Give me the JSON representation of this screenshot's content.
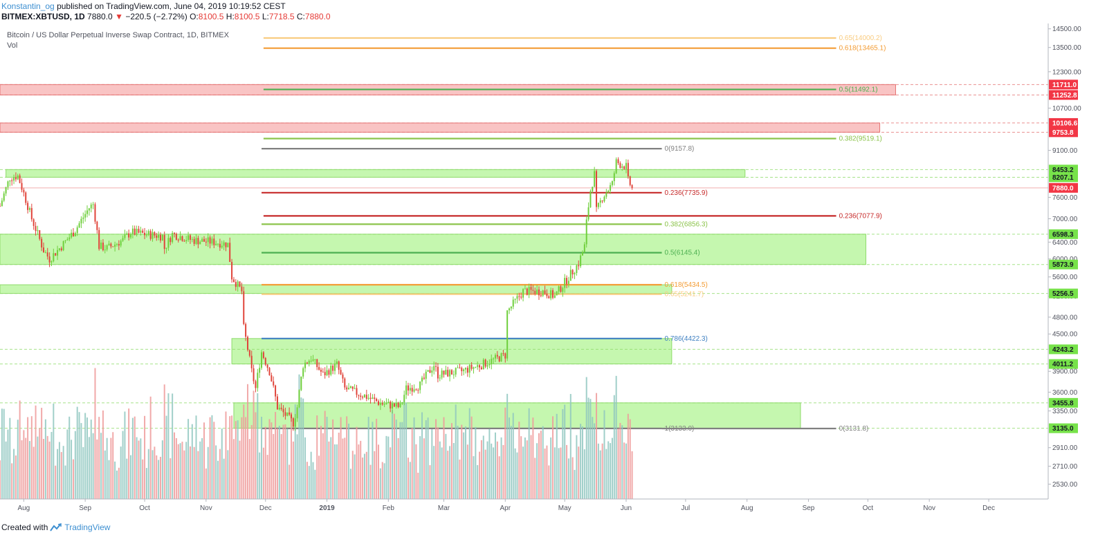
{
  "header": {
    "author": "Konstantin_og",
    "published_text": "published on TradingView.com, June 04, 2019 10:19:52 CEST"
  },
  "quote": {
    "symbol": "BITMEX:XBTUSD, 1D",
    "last": "7880.0",
    "change_arrow": "▼",
    "change": "−220.5 (−2.72%)",
    "o_label": "O:",
    "o_value": "8100.5",
    "h_label": "H:",
    "h_value": "8100.5",
    "l_label": "L:",
    "l_value": "7718.5",
    "c_label": "C:",
    "c_value": "7880.0"
  },
  "footer": {
    "created_with": "Created with",
    "brand": "TradingView"
  },
  "colors": {
    "up": "#6fcf3c",
    "down": "#e0443a",
    "vol_up": "#8fc7c0",
    "vol_down": "#ef9a9a",
    "green_zone": "#b7f59b",
    "red_zone": "#f7b5b5"
  },
  "chart_data": {
    "type": "candlestick",
    "title": "Bitcoin / US Dollar Perpetual Inverse Swap Contract, 1D, BITMEX",
    "volume_label": "Vol",
    "x_range": [
      "2018-07-20",
      "2019-12-31"
    ],
    "y_range": [
      2390,
      14800
    ],
    "x_ticks": [
      {
        "label": "Aug",
        "date": "2018-08-01"
      },
      {
        "label": "Sep",
        "date": "2018-09-01"
      },
      {
        "label": "Oct",
        "date": "2018-10-01"
      },
      {
        "label": "Nov",
        "date": "2018-11-01"
      },
      {
        "label": "Dec",
        "date": "2018-12-01"
      },
      {
        "label": "2019",
        "date": "2019-01-01"
      },
      {
        "label": "Feb",
        "date": "2019-02-01"
      },
      {
        "label": "Mar",
        "date": "2019-03-01"
      },
      {
        "label": "Apr",
        "date": "2019-04-01"
      },
      {
        "label": "May",
        "date": "2019-05-01"
      },
      {
        "label": "Jun",
        "date": "2019-06-01"
      },
      {
        "label": "Jul",
        "date": "2019-07-01"
      },
      {
        "label": "Aug",
        "date": "2019-08-01"
      },
      {
        "label": "Sep",
        "date": "2019-09-01"
      },
      {
        "label": "Oct",
        "date": "2019-10-01"
      },
      {
        "label": "Nov",
        "date": "2019-11-01"
      },
      {
        "label": "Dec",
        "date": "2019-12-01"
      }
    ],
    "y_ticks": [
      "14500.00",
      "13500.00",
      "12300.00",
      "10700.00",
      "9100.00",
      "7600.00",
      "7000.00",
      "6400.00",
      "6000.00",
      "5600.00",
      "5200.00",
      "4800.00",
      "4500.00",
      "3900.00",
      "3600.00",
      "3350.00",
      "2910.00",
      "2710.00",
      "2530.00"
    ],
    "y_tick_values": [
      14500,
      13500,
      12300,
      10700,
      9100,
      7600,
      7000,
      6400,
      6000,
      5600,
      5200,
      4800,
      4500,
      3900,
      3600,
      3350,
      2910,
      2710,
      2530
    ],
    "price_badges": [
      {
        "label": "11711.0",
        "value": 11711.0,
        "kind": "red"
      },
      {
        "label": "11252.8",
        "value": 11252.8,
        "kind": "red"
      },
      {
        "label": "10106.6",
        "value": 10106.6,
        "kind": "red"
      },
      {
        "label": "9753.8",
        "value": 9753.8,
        "kind": "red"
      },
      {
        "label": "8453.2",
        "value": 8453.2,
        "kind": "green"
      },
      {
        "label": "8207.1",
        "value": 8207.1,
        "kind": "green"
      },
      {
        "label": "7880.0",
        "value": 7880.0,
        "kind": "last"
      },
      {
        "label": "6598.3",
        "value": 6598.3,
        "kind": "green"
      },
      {
        "label": "5873.9",
        "value": 5873.9,
        "kind": "green"
      },
      {
        "label": "5256.5",
        "value": 5256.5,
        "kind": "green"
      },
      {
        "label": "4243.2",
        "value": 4243.2,
        "kind": "green"
      },
      {
        "label": "4011.2",
        "value": 4011.2,
        "kind": "green"
      },
      {
        "label": "3455.8",
        "value": 3455.8,
        "kind": "green"
      },
      {
        "label": "3135.0",
        "value": 3135.0,
        "kind": "green"
      }
    ],
    "zones": [
      {
        "kind": "red",
        "x0": "2018-07-20",
        "x1": "2019-10-15",
        "y_low": 11252.8,
        "y_high": 11711.0
      },
      {
        "kind": "red",
        "x0": "2018-07-20",
        "x1": "2019-10-07",
        "y_low": 9753.8,
        "y_high": 10106.6
      },
      {
        "kind": "green",
        "x0": "2018-07-23",
        "x1": "2019-07-31",
        "y_low": 8207.1,
        "y_high": 8453.2
      },
      {
        "kind": "green",
        "x0": "2018-07-20",
        "x1": "2019-09-30",
        "y_low": 5873.9,
        "y_high": 6598.3
      },
      {
        "kind": "green",
        "x0": "2018-07-20",
        "x1": "2019-06-24",
        "y_low": 5256.5,
        "y_high": 5434.5
      },
      {
        "kind": "green",
        "x0": "2018-11-14",
        "x1": "2019-06-24",
        "y_low": 4011.2,
        "y_high": 4422.3
      },
      {
        "kind": "green",
        "x0": "2018-11-15",
        "x1": "2019-08-28",
        "y_low": 3135.0,
        "y_high": 3455.8
      }
    ],
    "fib_levels": [
      {
        "label": "0.65(14000.2)",
        "value": 14000.2,
        "color": "#f9cc80",
        "x0": "2018-11-30",
        "x1": "2019-09-15",
        "label_at": "end"
      },
      {
        "label": "0.618(13465.1)",
        "value": 13465.1,
        "color": "#f39c34",
        "x0": "2018-11-30",
        "x1": "2019-09-15",
        "label_at": "end"
      },
      {
        "label": "0.5(11492.1)",
        "value": 11492.1,
        "color": "#4caf50",
        "x0": "2018-11-30",
        "x1": "2019-09-15",
        "label_at": "end"
      },
      {
        "label": "0.382(9519.1)",
        "value": 9519.1,
        "color": "#8bc34a",
        "x0": "2018-11-30",
        "x1": "2019-09-15",
        "label_at": "end"
      },
      {
        "label": "0(9157.8)",
        "value": 9157.8,
        "color": "#808080",
        "x0": "2018-11-29",
        "x1": "2019-06-19",
        "label_at": "end"
      },
      {
        "label": "0.236(7735.9)",
        "value": 7735.9,
        "color": "#c62828",
        "x0": "2018-11-29",
        "x1": "2019-06-19",
        "label_at": "end"
      },
      {
        "label": "0.236(7077.9)",
        "value": 7077.9,
        "color": "#c62828",
        "x0": "2018-11-30",
        "x1": "2019-09-15",
        "label_at": "end"
      },
      {
        "label": "0.382(6856.3)",
        "value": 6856.3,
        "color": "#8bc34a",
        "x0": "2018-11-29",
        "x1": "2019-06-19",
        "label_at": "end"
      },
      {
        "label": "0.5(6145.4)",
        "value": 6145.4,
        "color": "#4caf50",
        "x0": "2018-11-29",
        "x1": "2019-06-19",
        "label_at": "end"
      },
      {
        "label": "0.618(5434.5)",
        "value": 5434.5,
        "color": "#f39c34",
        "x0": "2018-11-29",
        "x1": "2019-06-19",
        "label_at": "end"
      },
      {
        "label": "0.65(5241.7)",
        "value": 5241.7,
        "color": "#f9cc80",
        "x0": "2018-11-29",
        "x1": "2019-06-19",
        "label_at": "end"
      },
      {
        "label": "0.786(4422.3)",
        "value": 4422.3,
        "color": "#3d7fc1",
        "x0": "2018-11-29",
        "x1": "2019-06-19",
        "label_at": "end"
      },
      {
        "label": "1(3133.0)",
        "value": 3133.0,
        "color": "#808080",
        "x0": "2018-11-29",
        "x1": "2019-06-19",
        "label_at": "end"
      },
      {
        "label": "0(3131.8)",
        "value": 3131.8,
        "color": "#808080",
        "x0": "2019-06-19",
        "x1": "2019-09-15",
        "label_at": "end"
      }
    ],
    "price_path": [
      {
        "date": "2018-07-20",
        "close": 7350
      },
      {
        "date": "2018-07-25",
        "close": 8200
      },
      {
        "date": "2018-07-29",
        "close": 8250
      },
      {
        "date": "2018-08-05",
        "close": 7000
      },
      {
        "date": "2018-08-11",
        "close": 6200
      },
      {
        "date": "2018-08-14",
        "close": 6000
      },
      {
        "date": "2018-08-20",
        "close": 6300
      },
      {
        "date": "2018-08-27",
        "close": 6700
      },
      {
        "date": "2018-09-03",
        "close": 7300
      },
      {
        "date": "2018-09-05",
        "close": 7400
      },
      {
        "date": "2018-09-08",
        "close": 6300
      },
      {
        "date": "2018-09-12",
        "close": 6250
      },
      {
        "date": "2018-09-20",
        "close": 6450
      },
      {
        "date": "2018-09-24",
        "close": 6650
      },
      {
        "date": "2018-10-01",
        "close": 6600
      },
      {
        "date": "2018-10-10",
        "close": 6550
      },
      {
        "date": "2018-10-11",
        "close": 6250
      },
      {
        "date": "2018-10-15",
        "close": 6600
      },
      {
        "date": "2018-10-25",
        "close": 6450
      },
      {
        "date": "2018-11-05",
        "close": 6400
      },
      {
        "date": "2018-11-12",
        "close": 6350
      },
      {
        "date": "2018-11-14",
        "close": 5600
      },
      {
        "date": "2018-11-19",
        "close": 5300
      },
      {
        "date": "2018-11-20",
        "close": 4600
      },
      {
        "date": "2018-11-24",
        "close": 3900
      },
      {
        "date": "2018-11-26",
        "close": 3650
      },
      {
        "date": "2018-11-29",
        "close": 4200
      },
      {
        "date": "2018-12-03",
        "close": 3900
      },
      {
        "date": "2018-12-07",
        "close": 3400
      },
      {
        "date": "2018-12-15",
        "close": 3200
      },
      {
        "date": "2018-12-17",
        "close": 3400
      },
      {
        "date": "2018-12-20",
        "close": 4000
      },
      {
        "date": "2018-12-24",
        "close": 4100
      },
      {
        "date": "2018-12-30",
        "close": 3850
      },
      {
        "date": "2019-01-06",
        "close": 4000
      },
      {
        "date": "2019-01-10",
        "close": 3650
      },
      {
        "date": "2019-01-20",
        "close": 3550
      },
      {
        "date": "2019-01-28",
        "close": 3450
      },
      {
        "date": "2019-02-07",
        "close": 3400
      },
      {
        "date": "2019-02-10",
        "close": 3650
      },
      {
        "date": "2019-02-17",
        "close": 3700
      },
      {
        "date": "2019-02-24",
        "close": 4000
      },
      {
        "date": "2019-02-26",
        "close": 3850
      },
      {
        "date": "2019-03-10",
        "close": 3900
      },
      {
        "date": "2019-03-20",
        "close": 4000
      },
      {
        "date": "2019-04-01",
        "close": 4150
      },
      {
        "date": "2019-04-02",
        "close": 4900
      },
      {
        "date": "2019-04-05",
        "close": 5050
      },
      {
        "date": "2019-04-10",
        "close": 5300
      },
      {
        "date": "2019-04-20",
        "close": 5300
      },
      {
        "date": "2019-04-26",
        "close": 5200
      },
      {
        "date": "2019-05-03",
        "close": 5600
      },
      {
        "date": "2019-05-08",
        "close": 5900
      },
      {
        "date": "2019-05-11",
        "close": 6300
      },
      {
        "date": "2019-05-12",
        "close": 6900
      },
      {
        "date": "2019-05-14",
        "close": 7800
      },
      {
        "date": "2019-05-16",
        "close": 8300
      },
      {
        "date": "2019-05-17",
        "close": 7200
      },
      {
        "date": "2019-05-20",
        "close": 7600
      },
      {
        "date": "2019-05-25",
        "close": 8000
      },
      {
        "date": "2019-05-27",
        "close": 8700
      },
      {
        "date": "2019-05-30",
        "close": 8600
      },
      {
        "date": "2019-06-01",
        "close": 8550
      },
      {
        "date": "2019-06-02",
        "close": 8100
      },
      {
        "date": "2019-06-04",
        "close": 7880
      }
    ]
  }
}
